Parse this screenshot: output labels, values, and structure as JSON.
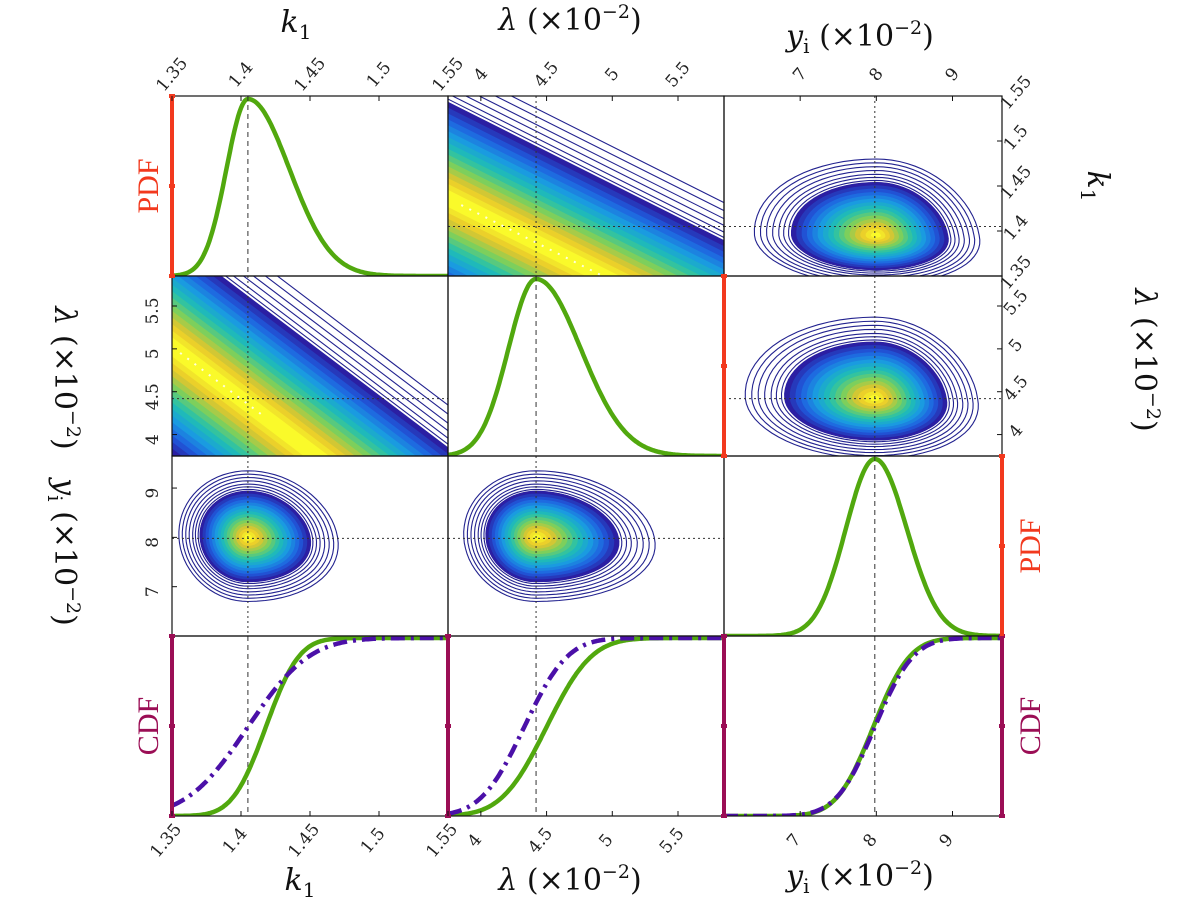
{
  "chart_data": {
    "type": "corner-plot",
    "title": "",
    "parameters": [
      {
        "id": "k1",
        "label": "k",
        "sub": "1",
        "scale": "",
        "range": [
          1.35,
          1.55
        ],
        "ticks": [
          1.35,
          1.4,
          1.45,
          1.5,
          1.55
        ],
        "tick_labels": [
          "1.35",
          "1.4",
          "1.45",
          "1.5",
          "1.55"
        ],
        "mode": 1.405
      },
      {
        "id": "lambda",
        "label": "λ",
        "sub": "",
        "scale": "(×10",
        "exp": "−2",
        "close": ")",
        "range": [
          3.75,
          5.85
        ],
        "ticks": [
          4,
          4.5,
          5,
          5.5
        ],
        "tick_labels": [
          "4",
          "4.5",
          "5",
          "5.5"
        ],
        "mode": 4.42
      },
      {
        "id": "yi",
        "label": "y",
        "sub": "i",
        "scale": "(×10",
        "exp": "−2",
        "close": ")",
        "range": [
          6.0,
          9.65
        ],
        "ticks": [
          7,
          8,
          9
        ],
        "tick_labels": [
          "7",
          "8",
          "9"
        ],
        "mode": 7.98
      }
    ],
    "pdf_label": "PDF",
    "cdf_label": "CDF",
    "pdf_axis_color": "#f2391e",
    "cdf_axis_color": "#9b0e55",
    "pdf_curve_color": "#51a80e",
    "cdf_dashdot_color": "#4b10a8",
    "contour_line_color": "#22228f",
    "colormap": [
      "#2b1fa3",
      "#1f5fe0",
      "#1a9be0",
      "#20c0b0",
      "#7dcf5c",
      "#e7c52a",
      "#fafa2a"
    ],
    "marginals": [
      {
        "param": "k1",
        "pdf": {
          "mode": 1.405,
          "sigma_left": 0.0155,
          "sigma_right": 0.03
        },
        "cdf_solid": {
          "mid": 1.418,
          "sigma": 0.019
        },
        "cdf_dashdot": {
          "mid": 1.405,
          "sigma": 0.035
        }
      },
      {
        "param": "lambda",
        "pdf": {
          "mode": 4.42,
          "sigma_left": 0.21,
          "sigma_right": 0.34
        },
        "cdf_solid": {
          "mid": 4.5,
          "sigma": 0.27
        },
        "cdf_dashdot": {
          "mid": 4.33,
          "sigma": 0.26
        }
      },
      {
        "param": "yi",
        "pdf": {
          "mode": 7.98,
          "sigma_left": 0.38,
          "sigma_right": 0.42
        },
        "cdf_solid": {
          "mid": 7.96,
          "sigma": 0.38
        },
        "cdf_dashdot": {
          "mid": 7.98,
          "sigma": 0.4
        }
      }
    ],
    "joint_panels": [
      {
        "row": 1,
        "col": 2,
        "x": "lambda",
        "y": "k1",
        "shape": "correlated-band",
        "center": [
          4.4,
          1.38
        ],
        "center_left": [
          3.78,
          1.434
        ],
        "center_right": [
          5.2,
          1.33
        ]
      },
      {
        "row": 1,
        "col": 3,
        "x": "yi",
        "y": "k1",
        "shape": "skewed-blob",
        "center": [
          8.0,
          1.395
        ],
        "rx_left": 1.6,
        "rx_right": 1.35,
        "ry_top": 0.085,
        "ry_bottom": 0.055
      },
      {
        "row": 2,
        "col": 1,
        "x": "k1",
        "y": "lambda",
        "shape": "correlated-band",
        "center": [
          1.41,
          4.45
        ],
        "center_left": [
          1.352,
          5.0
        ],
        "center_right": [
          1.43,
          4.05
        ]
      },
      {
        "row": 2,
        "col": 3,
        "x": "yi",
        "y": "lambda",
        "shape": "skewed-blob",
        "center": [
          7.98,
          4.42
        ],
        "rx_left": 1.7,
        "rx_right": 1.35,
        "ry_top": 0.95,
        "ry_bottom": 0.7
      },
      {
        "row": 3,
        "col": 1,
        "x": "k1",
        "y": "yi",
        "shape": "skewed-blob",
        "center": [
          1.405,
          8.0
        ],
        "rx_left": 0.05,
        "rx_right": 0.065,
        "ry_top": 1.35,
        "ry_bottom": 1.3
      },
      {
        "row": 3,
        "col": 2,
        "x": "lambda",
        "y": "yi",
        "shape": "skewed-blob",
        "center": [
          4.42,
          8.0
        ],
        "rx_left": 0.55,
        "rx_right": 0.9,
        "ry_top": 1.35,
        "ry_bottom": 1.3
      }
    ]
  }
}
